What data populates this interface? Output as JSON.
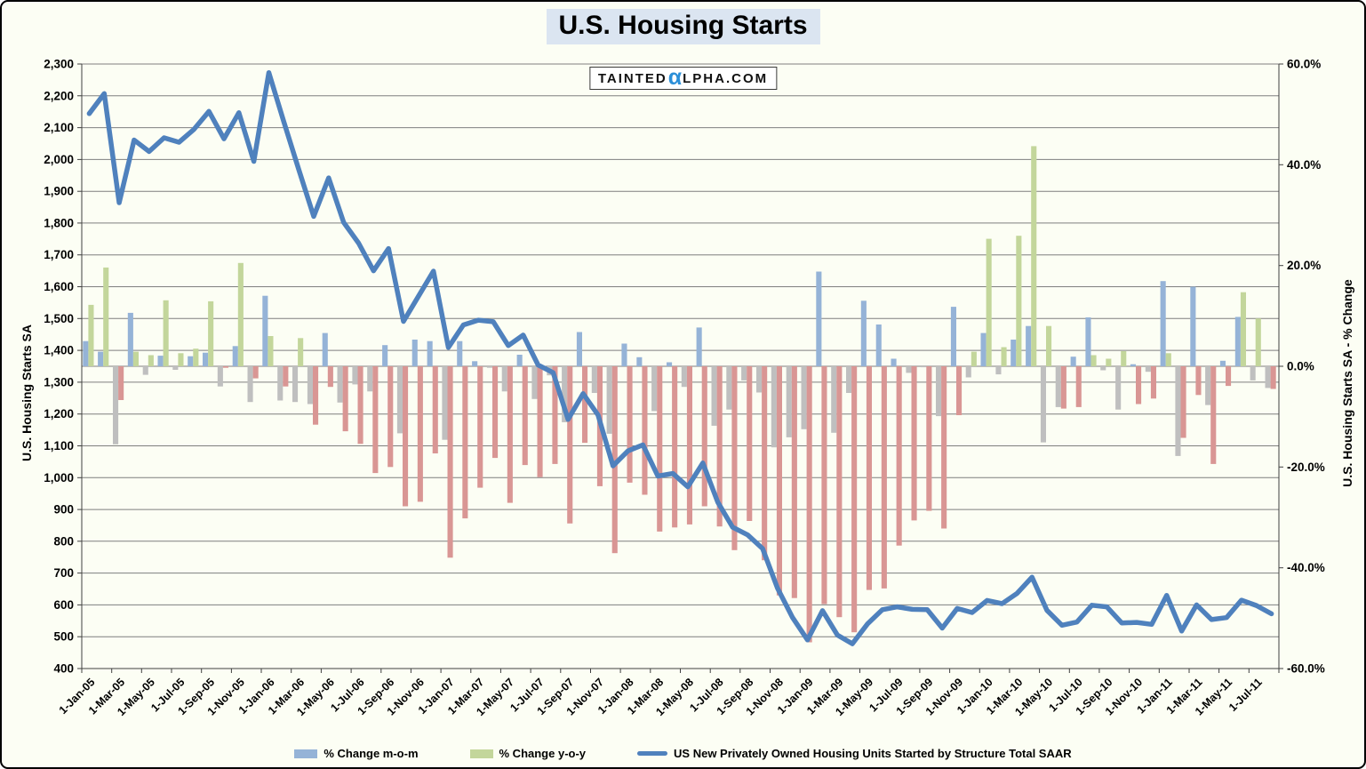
{
  "page": {
    "background": "#FCFEF4",
    "border_color": "#000000"
  },
  "header": {
    "title": "U.S. Housing Starts",
    "title_bg": "#DBE5F1"
  },
  "watermark": {
    "part1": "TAINTED",
    "alpha": "α",
    "part2": "LPHA.COM",
    "alpha_color": "#2B8FD8"
  },
  "chart_data": {
    "type": "combo-bar-line",
    "title": "U.S. Housing Starts",
    "months": [
      "Jan-05",
      "Feb-05",
      "Mar-05",
      "Apr-05",
      "May-05",
      "Jun-05",
      "Jul-05",
      "Aug-05",
      "Sep-05",
      "Oct-05",
      "Nov-05",
      "Dec-05",
      "Jan-06",
      "Feb-06",
      "Mar-06",
      "Apr-06",
      "May-06",
      "Jun-06",
      "Jul-06",
      "Aug-06",
      "Sep-06",
      "Oct-06",
      "Nov-06",
      "Dec-06",
      "Jan-07",
      "Feb-07",
      "Mar-07",
      "Apr-07",
      "May-07",
      "Jun-07",
      "Jul-07",
      "Aug-07",
      "Sep-07",
      "Oct-07",
      "Nov-07",
      "Dec-07",
      "Jan-08",
      "Feb-08",
      "Mar-08",
      "Apr-08",
      "May-08",
      "Jun-08",
      "Jul-08",
      "Aug-08",
      "Sep-08",
      "Oct-08",
      "Nov-08",
      "Dec-08",
      "Jan-09",
      "Feb-09",
      "Mar-09",
      "Apr-09",
      "May-09",
      "Jun-09",
      "Jul-09",
      "Aug-09",
      "Sep-09",
      "Oct-09",
      "Nov-09",
      "Dec-09",
      "Jan-10",
      "Feb-10",
      "Mar-10",
      "Apr-10",
      "May-10",
      "Jun-10",
      "Jul-10",
      "Aug-10",
      "Sep-10",
      "Oct-10",
      "Nov-10",
      "Dec-10",
      "Jan-11",
      "Feb-11",
      "Mar-11",
      "Apr-11",
      "May-11",
      "Jun-11",
      "Jul-11",
      "Aug-11"
    ],
    "x_tick_labels": [
      "1-Jan-05",
      "1-Mar-05",
      "1-May-05",
      "1-Jul-05",
      "1-Sep-05",
      "1-Nov-05",
      "1-Jan-06",
      "1-Mar-06",
      "1-May-06",
      "1-Jul-06",
      "1-Sep-06",
      "1-Nov-06",
      "1-Jan-07",
      "1-Mar-07",
      "1-May-07",
      "1-Jul-07",
      "1-Sep-07",
      "1-Nov-07",
      "1-Jan-08",
      "1-Mar-08",
      "1-May-08",
      "1-Jul-08",
      "1-Sep-08",
      "1-Nov-08",
      "1-Jan-09",
      "1-Mar-09",
      "1-May-09",
      "1-Jul-09",
      "1-Sep-09",
      "1-Nov-09",
      "1-Jan-10",
      "1-Mar-10",
      "1-May-10",
      "1-Jul-10",
      "1-Sep-10",
      "1-Nov-10",
      "1-Jan-11",
      "1-Mar-11",
      "1-May-11",
      "1-Jul-11"
    ],
    "left_axis": {
      "title": "U.S. Housing Starts SA",
      "min": 400,
      "max": 2300,
      "step": 100
    },
    "right_axis": {
      "title": "U.S. Housing Starts SA - % Change",
      "min": -60,
      "max": 60,
      "step": 20
    },
    "gridline_color": "#7F7F7F",
    "axis_line_color": "#404040",
    "series": [
      {
        "name": "% Change m-o-m",
        "type": "bar",
        "axis": "right",
        "color_positive": "#95B3D7",
        "color_negative": "#BFBFBF",
        "values": [
          5.0,
          2.9,
          -15.5,
          10.6,
          -1.7,
          2.1,
          -0.7,
          2.0,
          2.7,
          -4.0,
          4.0,
          -7.1,
          14.0,
          -6.8,
          -7.1,
          -7.5,
          6.6,
          -7.2,
          -3.6,
          -5.0,
          4.2,
          -13.3,
          5.3,
          5.0,
          -14.6,
          5.0,
          1.0,
          -0.3,
          -5.0,
          2.3,
          -6.5,
          -1.8,
          -11.1,
          6.8,
          -5.3,
          -13.4,
          4.5,
          1.8,
          -8.9,
          0.8,
          -4.1,
          7.7,
          -11.8,
          -8.6,
          -2.8,
          -5.2,
          -16.1,
          -14.1,
          -12.5,
          18.8,
          -13.2,
          -5.3,
          13.0,
          8.3,
          1.5,
          -1.3,
          -0.2,
          -9.9,
          11.8,
          -2.2,
          6.6,
          -1.6,
          5.3,
          8.0,
          -15.1,
          -8.1,
          1.9,
          9.7,
          -0.8,
          -8.6,
          0.4,
          -1.1,
          16.9,
          -17.8,
          15.8,
          -7.7,
          1.1,
          9.8,
          -2.8,
          -4.3
        ]
      },
      {
        "name": "% Change y-o-y",
        "type": "bar",
        "axis": "right",
        "color_positive": "#C3D69B",
        "color_negative": "#D99694",
        "values": [
          12.2,
          19.6,
          -6.7,
          2.9,
          2.2,
          13.1,
          2.6,
          3.5,
          12.9,
          -0.3,
          20.5,
          -2.4,
          6.0,
          -4.0,
          5.6,
          -11.6,
          -4.1,
          -12.9,
          -15.4,
          -21.2,
          -20.0,
          -27.8,
          -26.9,
          -17.3,
          -38.0,
          -30.2,
          -24.1,
          -18.2,
          -27.1,
          -19.6,
          -22.0,
          -19.4,
          -31.2,
          -15.2,
          -23.8,
          -37.1,
          -23.1,
          -25.5,
          -32.8,
          -32.0,
          -31.4,
          -27.8,
          -31.8,
          -36.5,
          -30.7,
          -38.5,
          -45.5,
          -46.0,
          -54.8,
          -47.2,
          -49.8,
          -52.8,
          -44.4,
          -44.1,
          -35.6,
          -30.6,
          -28.7,
          -32.2,
          -9.7,
          2.9,
          25.3,
          3.8,
          25.9,
          43.7,
          8.0,
          -8.4,
          -8.1,
          2.2,
          1.5,
          3.0,
          -7.5,
          -6.4,
          2.6,
          -14.2,
          -5.7,
          -19.4,
          -3.9,
          14.7,
          9.5,
          -4.5
        ]
      },
      {
        "name": "US New Privately Owned Housing Units Started by Structure Total SAAR",
        "type": "line",
        "axis": "left",
        "color": "#4F81BD",
        "values": [
          2144,
          2207,
          1864,
          2061,
          2025,
          2068,
          2054,
          2095,
          2151,
          2065,
          2147,
          1994,
          2273,
          2119,
          1969,
          1821,
          1942,
          1802,
          1737,
          1650,
          1720,
          1491,
          1570,
          1649,
          1409,
          1480,
          1495,
          1490,
          1415,
          1448,
          1354,
          1330,
          1183,
          1264,
          1197,
          1037,
          1084,
          1103,
          1005,
          1013,
          971,
          1046,
          923,
          844,
          820,
          777,
          652,
          560,
          490,
          582,
          505,
          478,
          540,
          585,
          594,
          586,
          585,
          527,
          589,
          576,
          614,
          604,
          636,
          687,
          583,
          536,
          546,
          599,
          594,
          543,
          545,
          539,
          630,
          518,
          600,
          554,
          560,
          615,
          598,
          572
        ]
      }
    ]
  },
  "legend": {
    "items": [
      {
        "label": "% Change m-o-m",
        "swatch": "bar-blue"
      },
      {
        "label": "% Change y-o-y",
        "swatch": "bar-green"
      },
      {
        "label": "US New Privately Owned Housing Units Started by Structure Total SAAR",
        "swatch": "line-blue"
      }
    ]
  }
}
